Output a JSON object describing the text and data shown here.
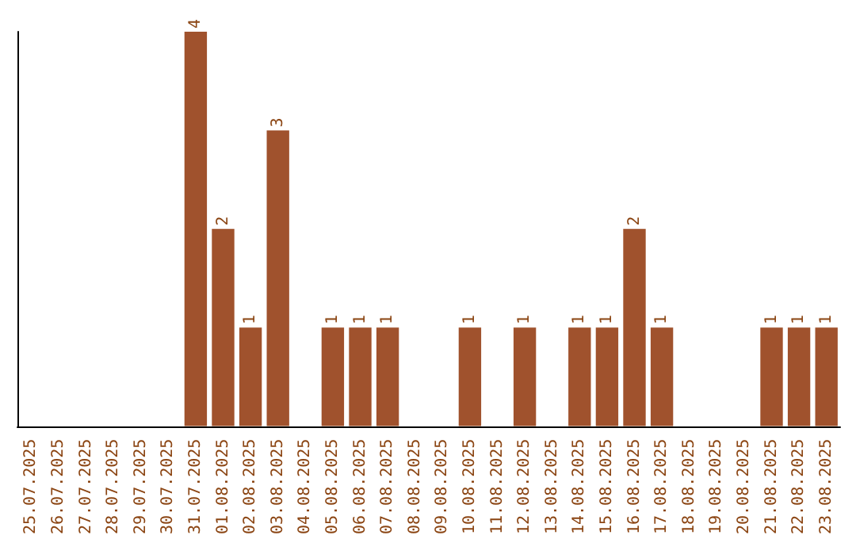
{
  "chart_data": {
    "type": "bar",
    "categories": [
      "25.07.2025",
      "26.07.2025",
      "27.07.2025",
      "28.07.2025",
      "29.07.2025",
      "30.07.2025",
      "31.07.2025",
      "01.08.2025",
      "02.08.2025",
      "03.08.2025",
      "04.08.2025",
      "05.08.2025",
      "06.08.2025",
      "07.08.2025",
      "08.08.2025",
      "09.08.2025",
      "10.08.2025",
      "11.08.2025",
      "12.08.2025",
      "13.08.2025",
      "14.08.2025",
      "15.08.2025",
      "16.08.2025",
      "17.08.2025",
      "18.08.2025",
      "19.08.2025",
      "20.08.2025",
      "21.08.2025",
      "22.08.2025",
      "23.08.2025"
    ],
    "values": [
      0,
      0,
      0,
      0,
      0,
      0,
      4,
      2,
      1,
      3,
      0,
      1,
      1,
      1,
      0,
      0,
      1,
      0,
      1,
      0,
      1,
      1,
      2,
      1,
      0,
      0,
      0,
      1,
      1,
      1
    ],
    "value_labels": [
      null,
      null,
      null,
      null,
      null,
      null,
      "4",
      "2",
      "1",
      "3",
      null,
      "1",
      "1",
      "1",
      null,
      null,
      "1",
      null,
      "1",
      null,
      "1",
      "1",
      "2",
      "1",
      null,
      null,
      null,
      "1",
      "1",
      "1"
    ],
    "color": "#a0522d",
    "tick_labels": "x",
    "grid": false
  }
}
